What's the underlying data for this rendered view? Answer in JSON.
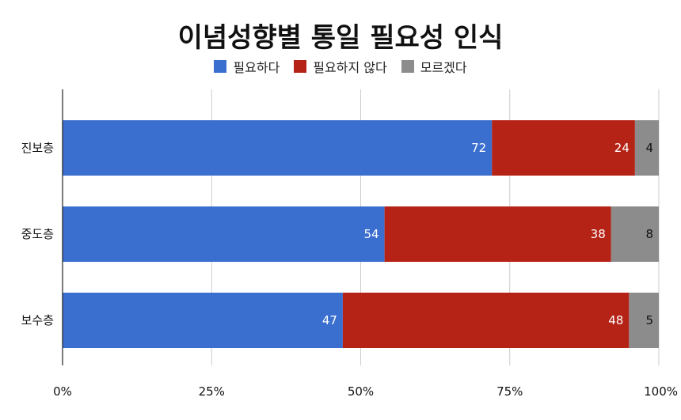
{
  "chart_data": {
    "type": "bar",
    "orientation": "horizontal",
    "stacked": true,
    "title": "이념성향별 통일 필요성 인식",
    "categories": [
      "진보층",
      "중도층",
      "보수층"
    ],
    "series": [
      {
        "name": "필요하다",
        "color": "#3b6fcf",
        "values": [
          72,
          54,
          47
        ]
      },
      {
        "name": "필요하지 않다",
        "color": "#b52317",
        "values": [
          24,
          38,
          48
        ]
      },
      {
        "name": "모르겠다",
        "color": "#8c8c8c",
        "values": [
          4,
          8,
          5
        ]
      }
    ],
    "xlim": [
      0,
      100
    ],
    "xticks": [
      0,
      25,
      50,
      75,
      100
    ],
    "xtick_labels": [
      "0%",
      "25%",
      "50%",
      "75%",
      "100%"
    ],
    "grid": true,
    "legend_position": "top"
  }
}
